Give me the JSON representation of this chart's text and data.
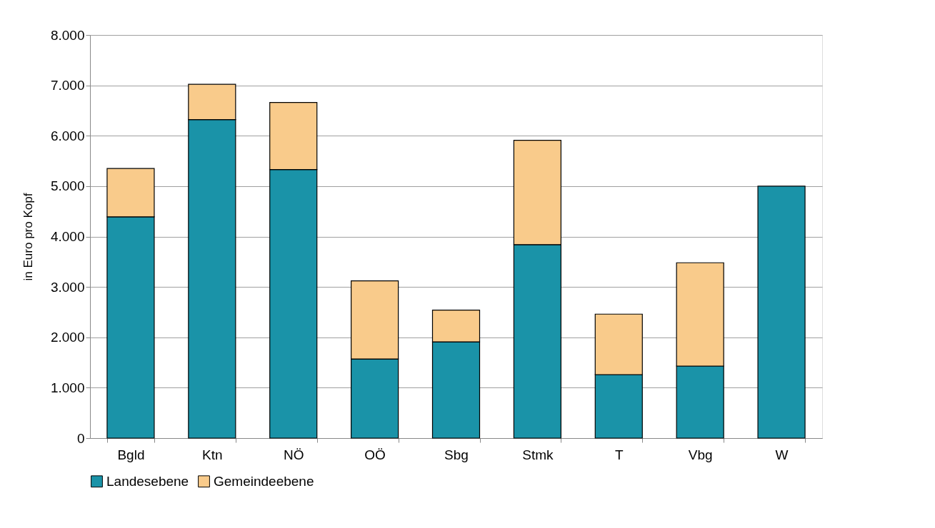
{
  "chart_data": {
    "type": "bar",
    "stacked": true,
    "ylabel": "in Euro pro Kopf",
    "categories": [
      "Bgld",
      "Ktn",
      "NÖ",
      "OÖ",
      "Sbg",
      "Stmk",
      "T",
      "Vbg",
      "W"
    ],
    "series": [
      {
        "name": "Landesebene",
        "color": "#1a93a8",
        "values": [
          4390,
          6320,
          5330,
          1570,
          1910,
          3840,
          1260,
          1430,
          5000
        ]
      },
      {
        "name": "Gemeindeebene",
        "color": "#f9cb8b",
        "values": [
          960,
          700,
          1330,
          1550,
          630,
          2070,
          1200,
          2050,
          null
        ]
      }
    ],
    "ylim": [
      0,
      8000
    ],
    "yticks": [
      0,
      {
        "value": 1000,
        "label": "1.000"
      },
      {
        "value": 2000,
        "label": "2.000"
      },
      {
        "value": 3000,
        "label": "3.000"
      },
      {
        "value": 4000,
        "label": "4.000"
      },
      {
        "value": 5000,
        "label": "5.000"
      },
      {
        "value": 6000,
        "label": "6.000"
      },
      {
        "value": 7000,
        "label": "7.000"
      },
      {
        "value": 8000,
        "label": "8.000"
      }
    ],
    "grid": "y",
    "legend": "bottom"
  }
}
